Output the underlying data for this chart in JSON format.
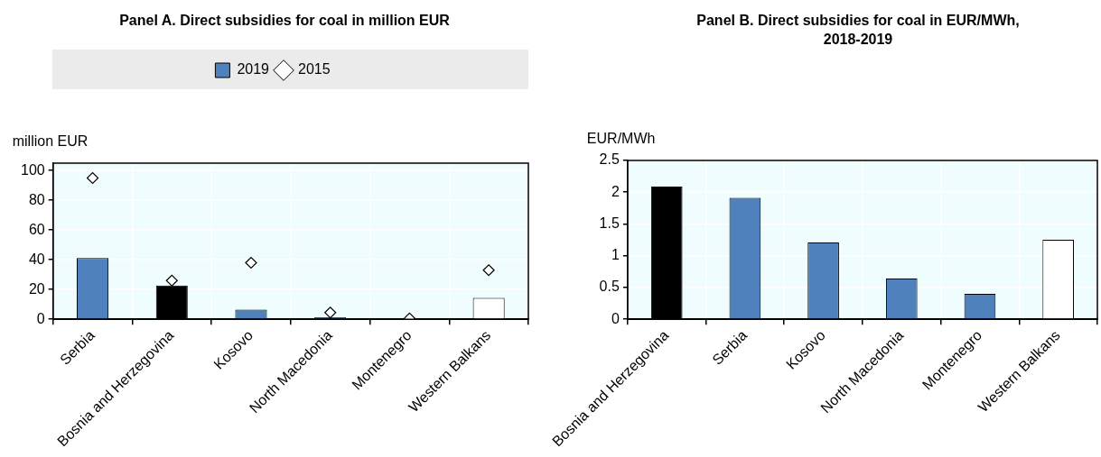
{
  "chart_data": [
    {
      "type": "bar",
      "title": "Panel A. Direct subsidies for coal in million EUR",
      "ylabel": "million EUR",
      "categories": [
        "Serbia",
        "Bosnia and Herzegovina",
        "Kosovo",
        "North Macedonia",
        "Montenegro",
        "Western Balkans"
      ],
      "ylim": [
        0,
        105
      ],
      "yticks": [
        0,
        20,
        40,
        60,
        80,
        100
      ],
      "grid": true,
      "legend": "top",
      "series": [
        {
          "name": "2019",
          "color": "#4f81bd",
          "colors": [
            "#4f81bd",
            "#000000",
            "#4f81bd",
            "#4f81bd",
            "#4f81bd",
            "#ffffff"
          ],
          "values": [
            41.2,
            22.7,
            6.5,
            1.3,
            0.3,
            14.3
          ]
        },
        {
          "name": "2015",
          "type": "scatter",
          "marker": "diamond",
          "color": "#ffffff",
          "x": [
            "Serbia",
            "Bosnia and Herzegovina",
            "Kosovo",
            "North Macedonia",
            "Montenegro",
            "Western Balkans"
          ],
          "values": [
            95,
            26,
            38,
            4.5,
            0.5,
            33
          ]
        }
      ]
    },
    {
      "type": "bar",
      "title": "Panel B. Direct subsidies for coal in EUR/MWh, 2018-2019",
      "ylabel": "EUR/MWh",
      "categories": [
        "Bosnia and Herzegovina",
        "Serbia",
        "Kosovo",
        "North Macedonia",
        "Montenegro",
        "Western Balkans"
      ],
      "ylim": [
        0,
        2.5
      ],
      "yticks": [
        0,
        0.5,
        1,
        1.5,
        2,
        2.5
      ],
      "grid": true,
      "series": [
        {
          "color": "#4f81bd",
          "colors": [
            "#000000",
            "#4f81bd",
            "#4f81bd",
            "#4f81bd",
            "#4f81bd",
            "#ffffff"
          ],
          "values": [
            2.09,
            1.91,
            1.21,
            0.64,
            0.4,
            1.25
          ]
        }
      ]
    }
  ]
}
